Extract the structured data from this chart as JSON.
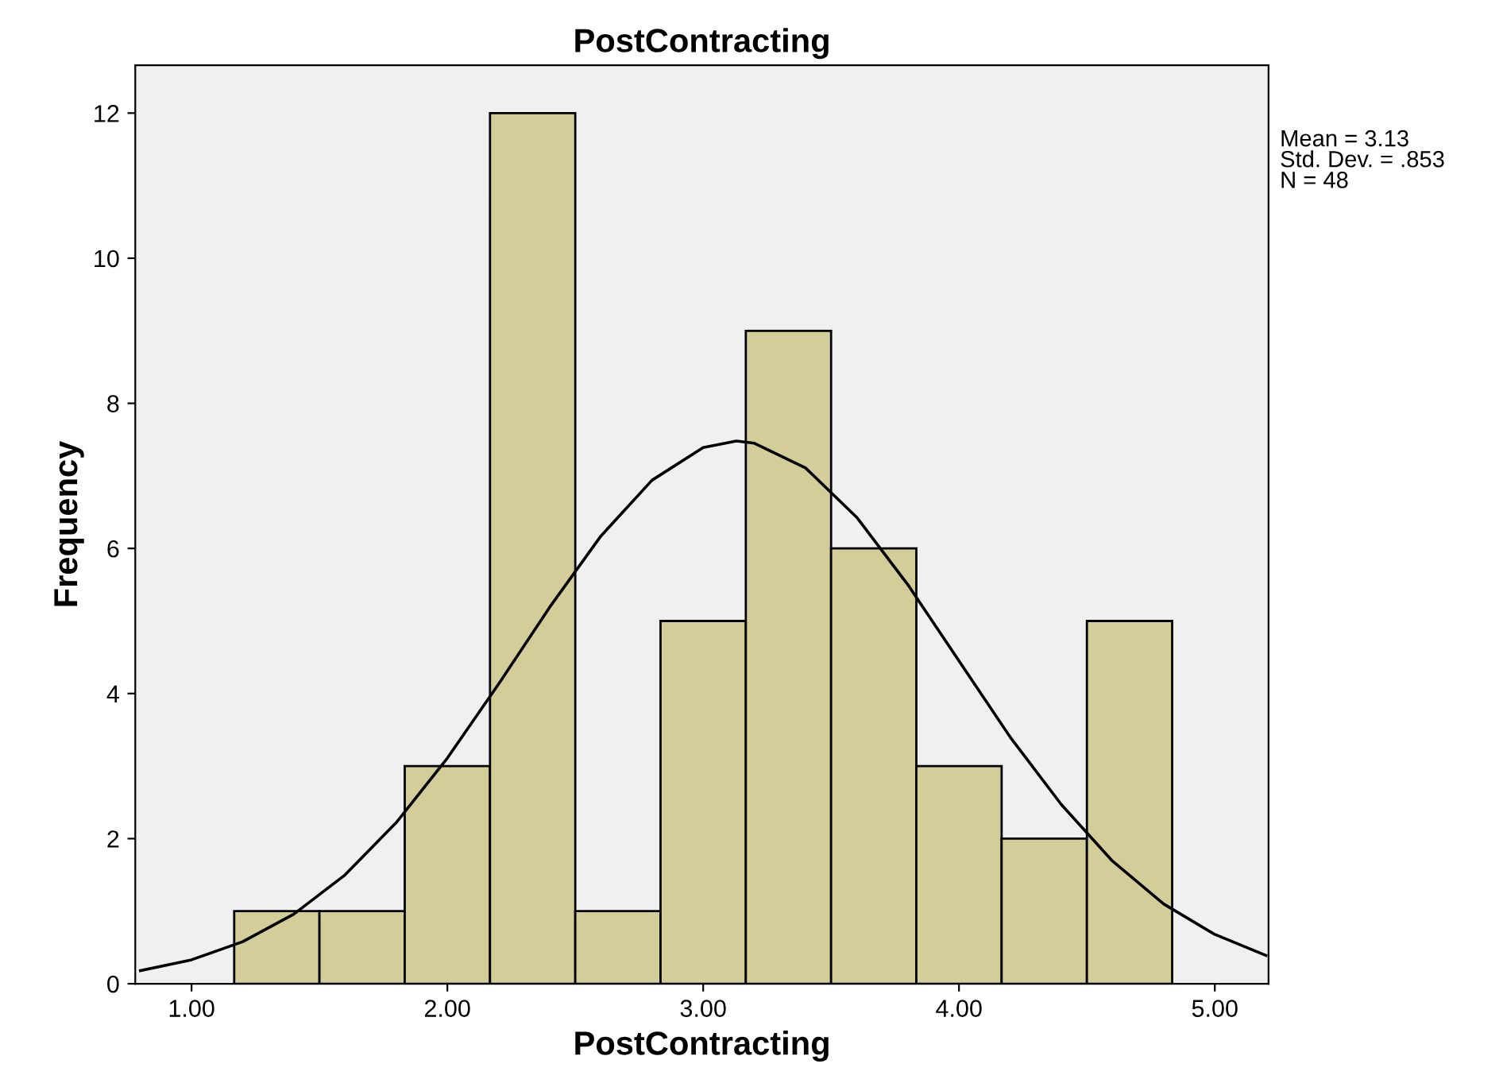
{
  "chart_data": {
    "type": "histogram",
    "title": "PostContracting",
    "xlabel": "PostContracting",
    "ylabel": "Frequency",
    "bins": [
      1.1667,
      1.5,
      1.8333,
      2.1667,
      2.5,
      2.8333,
      3.1667,
      3.5,
      3.8333,
      4.1667,
      4.5,
      4.8333
    ],
    "values": [
      1,
      1,
      3,
      12,
      1,
      5,
      9,
      6,
      3,
      2,
      5
    ],
    "color": "#d3ce99",
    "series": [
      {
        "type": "line",
        "color": "#000000",
        "x": [
          0.8,
          1.0,
          1.2,
          1.4,
          1.6,
          1.8,
          2.0,
          2.2,
          2.4,
          2.6,
          2.8,
          3.0,
          3.13,
          3.2,
          3.4,
          3.6,
          3.8,
          4.0,
          4.2,
          4.4,
          4.6,
          4.8,
          5.0,
          5.2
        ],
        "values": [
          0.18,
          0.33,
          0.58,
          0.96,
          1.5,
          2.22,
          3.11,
          4.13,
          5.19,
          6.17,
          6.94,
          7.39,
          7.48,
          7.45,
          7.11,
          6.43,
          5.5,
          4.45,
          3.4,
          2.47,
          1.69,
          1.1,
          0.68,
          0.39
        ]
      }
    ],
    "xlim": [
      0.78,
      5.21
    ],
    "ylim": [
      0,
      12.66
    ],
    "xticks": [
      {
        "value": 1,
        "label": "1.00"
      },
      {
        "value": 2,
        "label": "2.00"
      },
      {
        "value": 3,
        "label": "3.00"
      },
      {
        "value": 4,
        "label": "4.00"
      },
      {
        "value": 5,
        "label": "5.00"
      }
    ],
    "yticks": [
      0,
      2,
      4,
      6,
      8,
      10,
      12
    ],
    "annotations": [
      "Mean = 3.13\nStd. Dev. = .853\nN = 48"
    ],
    "grid": false,
    "legend": false
  }
}
